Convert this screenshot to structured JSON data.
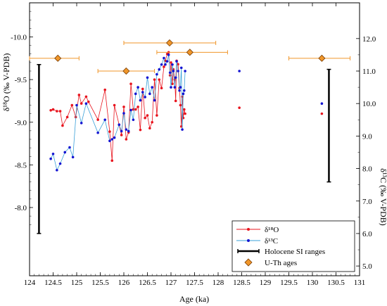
{
  "chart_data": {
    "type": "scatter",
    "xlabel": "Age (ka)",
    "ylabel_left": "δ¹⁸O (‰ V-PDB)",
    "ylabel_right": "δ¹³C (‰ V-PDB)",
    "xlim": [
      124,
      131
    ],
    "x_ticks": [
      "124",
      "124.5",
      "125",
      "125.5",
      "126",
      "126.5",
      "127",
      "127.5",
      "128",
      "128.5",
      "129",
      "129.5",
      "130",
      "130.5",
      "131"
    ],
    "ylim_left": [
      -7.2,
      -10.4
    ],
    "left_ticks": [
      "-10.0",
      "-9.5",
      "-9.0",
      "-8.5",
      "-8.0"
    ],
    "ylim_right": [
      4.7,
      13.1
    ],
    "right_ticks": [
      "5.0",
      "6.0",
      "7.0",
      "8.0",
      "9.0",
      "10.0",
      "11.0",
      "12.0"
    ],
    "colors": {
      "d18o": "#e8141e",
      "d13c": "#1414d2",
      "d13c_line": "#3aa0d8",
      "uth_fill": "#f0962a",
      "uth_err": "#f0962a",
      "si": "#000000"
    },
    "series": [
      {
        "name": "δ¹⁸O",
        "axis": "left",
        "x": [
          124.45,
          124.5,
          124.58,
          124.65,
          124.7,
          124.8,
          124.9,
          124.98,
          125.05,
          125.1,
          125.2,
          125.25,
          125.45,
          125.6,
          125.7,
          125.75,
          125.8,
          125.9,
          125.95,
          126.0,
          126.05,
          126.1,
          126.15,
          126.2,
          126.25,
          126.3,
          126.35,
          126.4,
          126.45,
          126.5,
          126.55,
          126.6,
          126.65,
          126.7,
          126.75,
          126.8,
          126.85,
          126.88,
          126.92,
          126.95,
          126.98,
          127.0,
          127.03,
          127.05,
          127.08,
          127.1,
          127.12,
          127.15,
          127.18,
          127.2,
          127.22,
          127.24,
          127.26,
          127.28,
          127.3,
          128.45,
          130.2
        ],
        "y": [
          -9.14,
          -9.15,
          -9.13,
          -9.13,
          -8.96,
          -9.06,
          -9.2,
          -9.06,
          -9.32,
          -9.22,
          -9.3,
          -9.24,
          -9.03,
          -9.38,
          -8.89,
          -8.55,
          -9.2,
          -8.97,
          -8.85,
          -9.18,
          -8.8,
          -8.88,
          -9.45,
          -9.15,
          -9.15,
          -9.18,
          -8.91,
          -9.39,
          -9.05,
          -9.08,
          -8.93,
          -9.0,
          -9.5,
          -9.08,
          -9.5,
          -9.4,
          -9.65,
          -9.72,
          -9.8,
          -9.82,
          -9.55,
          -9.7,
          -9.45,
          -9.62,
          -9.5,
          -9.25,
          -9.72,
          -9.68,
          -9.4,
          -9.2,
          -8.95,
          -9.3,
          -9.05,
          -9.15,
          -9.1,
          -9.17,
          -9.1
        ]
      },
      {
        "name": "δ¹³C",
        "axis": "right",
        "x": [
          124.45,
          124.5,
          124.58,
          124.65,
          124.75,
          124.85,
          124.92,
          125.0,
          125.1,
          125.2,
          125.45,
          125.6,
          125.7,
          125.75,
          125.8,
          125.9,
          125.95,
          126.0,
          126.05,
          126.1,
          126.15,
          126.2,
          126.25,
          126.3,
          126.35,
          126.4,
          126.45,
          126.5,
          126.55,
          126.6,
          126.65,
          126.7,
          126.75,
          126.8,
          126.85,
          126.88,
          126.92,
          126.95,
          126.98,
          127.0,
          127.03,
          127.05,
          127.08,
          127.1,
          127.12,
          127.15,
          127.18,
          127.2,
          127.22,
          127.24,
          127.26,
          127.28,
          127.3,
          128.45,
          130.2
        ],
        "y": [
          8.3,
          8.45,
          7.95,
          8.15,
          8.5,
          8.65,
          8.35,
          9.95,
          9.4,
          10.0,
          9.1,
          9.5,
          8.85,
          8.9,
          8.95,
          9.35,
          9.15,
          9.7,
          9.2,
          9.15,
          9.8,
          9.5,
          10.3,
          10.5,
          10.1,
          10.35,
          10.2,
          10.8,
          10.3,
          10.5,
          10.1,
          10.9,
          11.05,
          11.2,
          11.4,
          11.2,
          11.3,
          11.5,
          10.95,
          10.5,
          11.2,
          11.0,
          10.5,
          10.8,
          11.3,
          11.0,
          10.4,
          10.5,
          11.1,
          9.2,
          10.3,
          10.4,
          11.0,
          11.0,
          10.0
        ]
      }
    ],
    "uth_ages": {
      "name": "U-Th ages",
      "axis": "left",
      "y_axis": "δ¹⁸O",
      "points": [
        {
          "age": 124.6,
          "lo": 124.0,
          "hi": 125.05,
          "y": -9.75
        },
        {
          "age": 126.05,
          "lo": 125.45,
          "hi": 126.65,
          "y": -9.6
        },
        {
          "age": 126.97,
          "lo": 126.0,
          "hi": 127.95,
          "y": -9.93
        },
        {
          "age": 127.4,
          "lo": 126.7,
          "hi": 128.2,
          "y": -9.82
        },
        {
          "age": 130.2,
          "lo": 129.5,
          "hi": 130.8,
          "y": -9.75
        }
      ]
    },
    "holocene_si_ranges": {
      "name": "Holocene SI ranges",
      "d18o": {
        "x": 130.35,
        "y_range": [
          -8.3,
          -9.62
        ]
      },
      "d13c": {
        "x": 124.2,
        "y_range": [
          6.0,
          11.2
        ]
      }
    },
    "legend": {
      "position": "bottom-right",
      "entries": [
        "δ¹⁸O",
        "δ¹³C",
        "Holocene SI ranges",
        "U-Th ages"
      ]
    }
  }
}
